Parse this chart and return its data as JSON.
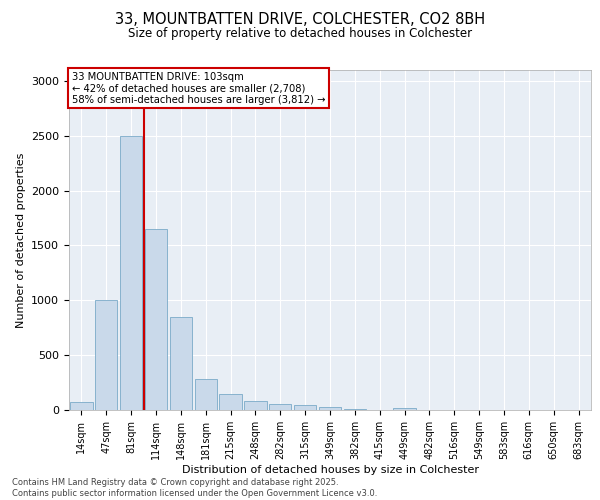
{
  "title": "33, MOUNTBATTEN DRIVE, COLCHESTER, CO2 8BH",
  "subtitle": "Size of property relative to detached houses in Colchester",
  "xlabel": "Distribution of detached houses by size in Colchester",
  "ylabel": "Number of detached properties",
  "bar_color": "#c9d9ea",
  "bar_edge_color": "#7aaac8",
  "background_color": "#e8eef5",
  "categories": [
    "14sqm",
    "47sqm",
    "81sqm",
    "114sqm",
    "148sqm",
    "181sqm",
    "215sqm",
    "248sqm",
    "282sqm",
    "315sqm",
    "349sqm",
    "382sqm",
    "415sqm",
    "449sqm",
    "482sqm",
    "516sqm",
    "549sqm",
    "583sqm",
    "616sqm",
    "650sqm",
    "683sqm"
  ],
  "values": [
    75,
    1000,
    2500,
    1650,
    850,
    280,
    150,
    80,
    55,
    50,
    30,
    5,
    0,
    20,
    0,
    0,
    0,
    0,
    0,
    0,
    0
  ],
  "ylim": [
    0,
    3100
  ],
  "yticks": [
    0,
    500,
    1000,
    1500,
    2000,
    2500,
    3000
  ],
  "property_line_bin": 2,
  "property_line_color": "#cc0000",
  "annotation_title": "33 MOUNTBATTEN DRIVE: 103sqm",
  "annotation_line1": "← 42% of detached houses are smaller (2,708)",
  "annotation_line2": "58% of semi-detached houses are larger (3,812) →",
  "annotation_box_color": "#cc0000",
  "footer_line1": "Contains HM Land Registry data © Crown copyright and database right 2025.",
  "footer_line2": "Contains public sector information licensed under the Open Government Licence v3.0."
}
